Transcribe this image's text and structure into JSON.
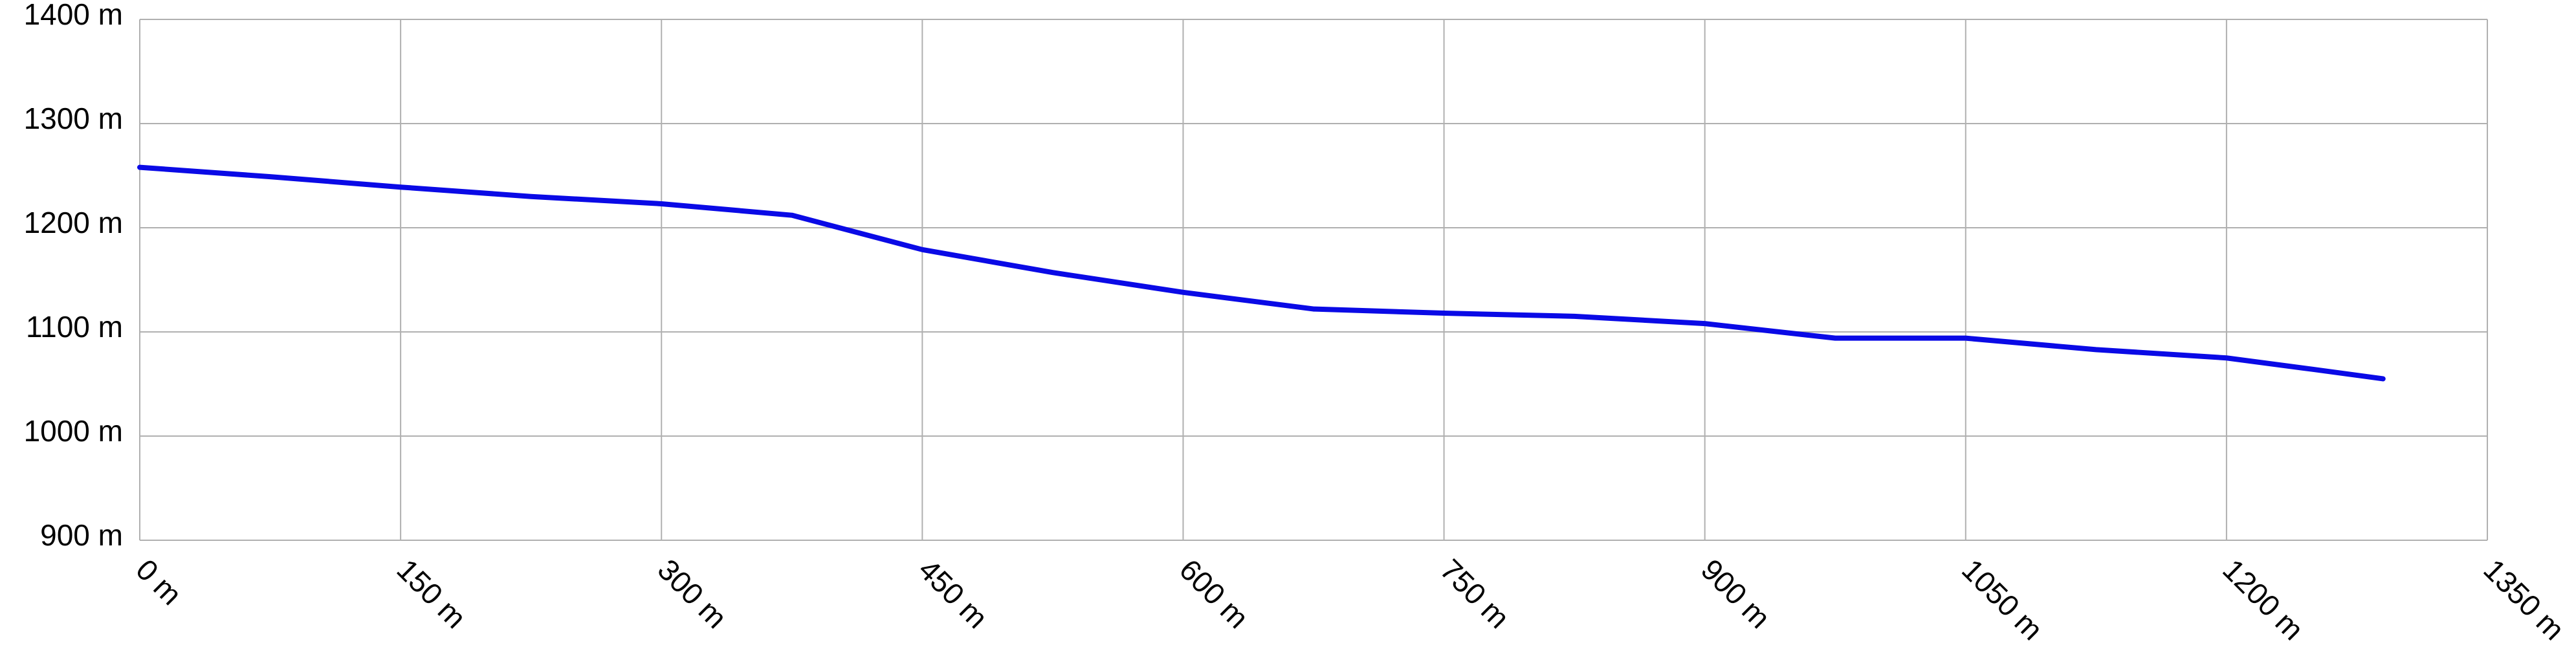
{
  "chart_data": {
    "type": "line",
    "x": [
      0,
      75,
      150,
      225,
      300,
      375,
      450,
      525,
      600,
      675,
      750,
      825,
      900,
      975,
      1050,
      1125,
      1200,
      1250,
      1290
    ],
    "values": [
      1258,
      1249,
      1239,
      1230,
      1223,
      1212,
      1179,
      1157,
      1138,
      1122,
      1118,
      1115,
      1108,
      1094,
      1094,
      1083,
      1075,
      1064,
      1055
    ],
    "color": "#0a0ae6",
    "xlim": [
      0,
      1350
    ],
    "xticks": [
      {
        "value": 0,
        "label": "0 m"
      },
      {
        "value": 150,
        "label": "150 m"
      },
      {
        "value": 300,
        "label": "300 m"
      },
      {
        "value": 450,
        "label": "450 m"
      },
      {
        "value": 600,
        "label": "600 m"
      },
      {
        "value": 750,
        "label": "750 m"
      },
      {
        "value": 900,
        "label": "900 m"
      },
      {
        "value": 1050,
        "label": "1050 m"
      },
      {
        "value": 1200,
        "label": "1200 m"
      },
      {
        "value": 1350,
        "label": "1350 m"
      }
    ],
    "ylim": [
      900,
      1400
    ],
    "yticks": [
      {
        "value": 900,
        "label": "900 m"
      },
      {
        "value": 1000,
        "label": "1000 m"
      },
      {
        "value": 1100,
        "label": "1100 m"
      },
      {
        "value": 1200,
        "label": "1200 m"
      },
      {
        "value": 1300,
        "label": "1300 m"
      },
      {
        "value": 1400,
        "label": "1400 m"
      }
    ],
    "grid": true
  }
}
